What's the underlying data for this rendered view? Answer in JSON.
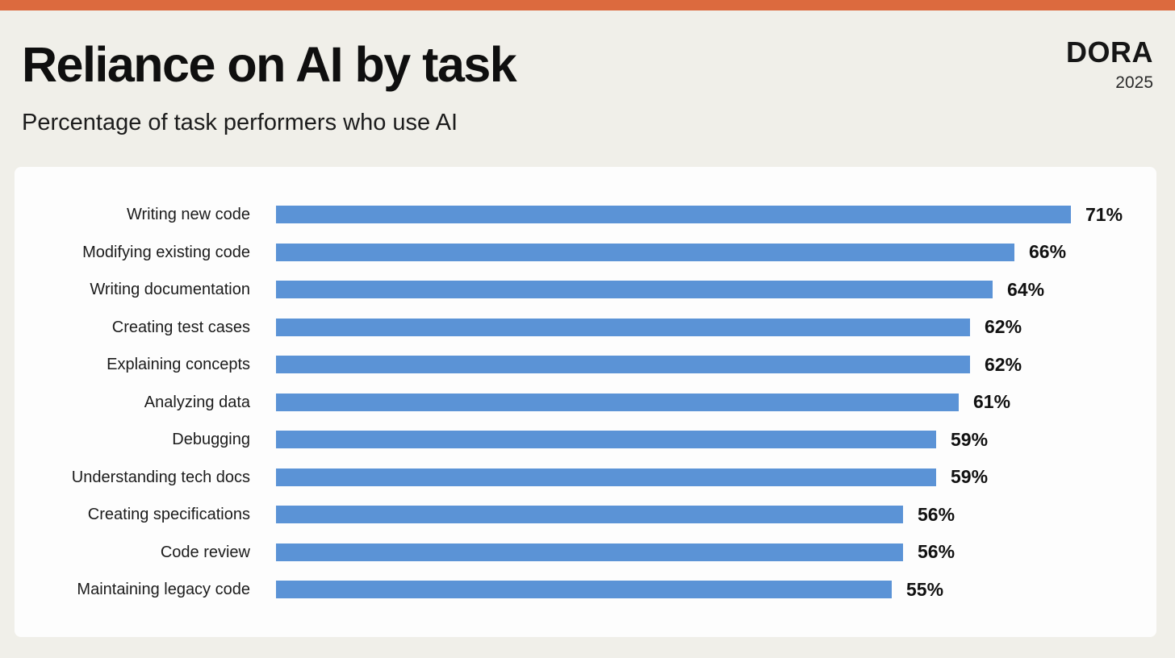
{
  "header": {
    "title": "Reliance on AI by task",
    "subtitle": "Percentage of task performers who use AI"
  },
  "brand": {
    "logo": "DORA",
    "year": "2025"
  },
  "colors": {
    "top_accent": "#DC6A3E",
    "background": "#F0EFE9",
    "card_background": "#FDFDFD",
    "bar_fill": "#5B93D6",
    "text_primary": "#121212"
  },
  "chart_data": {
    "type": "bar",
    "orientation": "horizontal",
    "title": "Reliance on AI by task",
    "subtitle": "Percentage of task performers who use AI",
    "categories": [
      "Writing new code",
      "Modifying existing code",
      "Writing documentation",
      "Creating test cases",
      "Explaining concepts",
      "Analyzing data",
      "Debugging",
      "Understanding tech docs",
      "Creating specifications",
      "Code review",
      "Maintaining legacy code"
    ],
    "values": [
      71,
      66,
      64,
      62,
      62,
      61,
      59,
      59,
      56,
      56,
      55
    ],
    "unit": "%",
    "xlim": [
      0,
      100
    ],
    "grid": false,
    "legend": false,
    "value_labels": "end_of_bar"
  }
}
